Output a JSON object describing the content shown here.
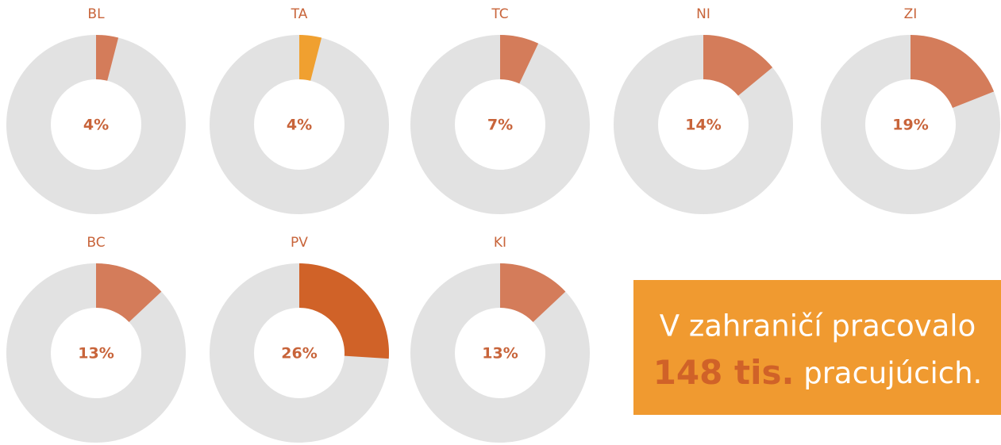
{
  "chart_data": [
    {
      "type": "pie",
      "title": "BL",
      "values": [
        4
      ],
      "value_labels": [
        "4%"
      ],
      "color": "#d47c5a"
    },
    {
      "type": "pie",
      "title": "TA",
      "values": [
        4
      ],
      "value_labels": [
        "4%"
      ],
      "color": "#f0a030"
    },
    {
      "type": "pie",
      "title": "TC",
      "values": [
        7
      ],
      "value_labels": [
        "7%"
      ],
      "color": "#d47c5a"
    },
    {
      "type": "pie",
      "title": "NI",
      "values": [
        14
      ],
      "value_labels": [
        "14%"
      ],
      "color": "#d47c5a"
    },
    {
      "type": "pie",
      "title": "ZI",
      "values": [
        19
      ],
      "value_labels": [
        "19%"
      ],
      "color": "#d47c5a"
    },
    {
      "type": "pie",
      "title": "BC",
      "values": [
        13
      ],
      "value_labels": [
        "13%"
      ],
      "color": "#d47c5a"
    },
    {
      "type": "pie",
      "title": "PV",
      "values": [
        26
      ],
      "value_labels": [
        "26%"
      ],
      "color": "#d06228"
    },
    {
      "type": "pie",
      "title": "KI",
      "values": [
        13
      ],
      "value_labels": [
        "13%"
      ],
      "color": "#d47c5a"
    }
  ],
  "callout": {
    "line1": "V zahraničí pracovalo",
    "highlight": "148 tis.",
    "rest": "pracujúcich."
  }
}
